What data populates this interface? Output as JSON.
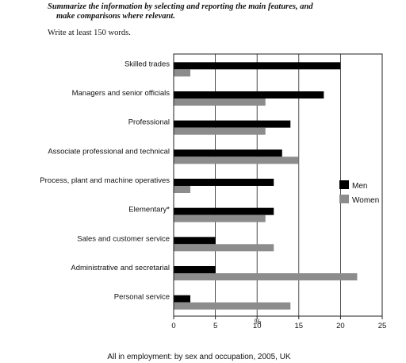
{
  "instructions": {
    "line1": "Summarize the information by selecting and reporting the main features, and",
    "line2": "make comparisons where relevant.",
    "word_count": "Write at least 150 words."
  },
  "chart_data": {
    "type": "bar",
    "orientation": "horizontal",
    "caption": "All in employment: by sex and occupation, 2005, UK",
    "xlabel": "%",
    "xlim": [
      0,
      25
    ],
    "xticks": [
      0,
      5,
      10,
      15,
      20,
      25
    ],
    "grid": true,
    "legend_position": "right",
    "categories": [
      "Skilled trades",
      "Managers and senior officials",
      "Professional",
      "Associate professional and technical",
      "Process, plant and machine operatives",
      "Elementary*",
      "Sales and customer service",
      "Administrative and secretarial",
      "Personal service"
    ],
    "series": [
      {
        "name": "Men",
        "color": "#000000",
        "values": [
          20,
          18,
          14,
          13,
          12,
          12,
          5,
          5,
          2
        ]
      },
      {
        "name": "Women",
        "color": "#8c8c8c",
        "values": [
          2,
          11,
          11,
          15,
          2,
          11,
          12,
          22,
          14
        ]
      }
    ]
  }
}
